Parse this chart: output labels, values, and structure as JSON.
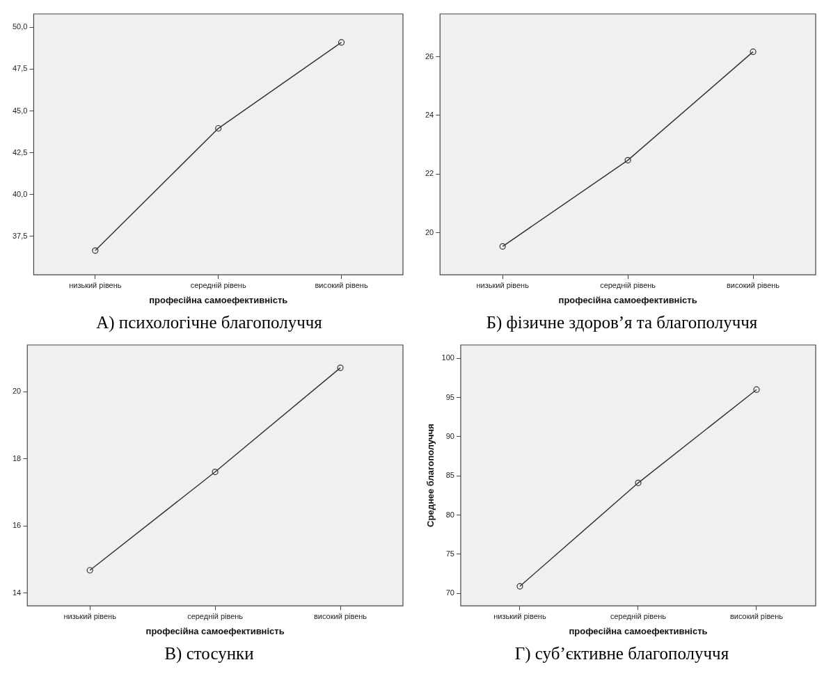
{
  "chart_data": [
    {
      "type": "line",
      "title": "А) психологічне благополуччя",
      "xlabel": "професійна самоефективність",
      "categories": [
        "низький рівень",
        "середній рівень",
        "високий рівень"
      ],
      "values": [
        36.65,
        43.96,
        49.1
      ],
      "color": "#333333",
      "marker": "circle",
      "line_style": "solid",
      "grid": false,
      "legend": false,
      "ylim": [
        35.2,
        50.8
      ],
      "yticks": [
        {
          "value": 37.5,
          "label": "37,5"
        },
        {
          "value": 40,
          "label": "40,0"
        },
        {
          "value": 42.5,
          "label": "42,5"
        },
        {
          "value": 45,
          "label": "45,0"
        },
        {
          "value": 47.5,
          "label": "47,5"
        },
        {
          "value": 50,
          "label": "50,0"
        }
      ]
    },
    {
      "type": "line",
      "title": "Б) фізичне здоров’я та благополуччя",
      "xlabel": "професійна самоефективність",
      "categories": [
        "низький рівень",
        "середній рівень",
        "високий рівень"
      ],
      "values": [
        19.53,
        22.47,
        26.17
      ],
      "color": "#333333",
      "marker": "circle",
      "line_style": "solid",
      "grid": false,
      "legend": false,
      "ylim": [
        18.56,
        27.46
      ],
      "yticks": [
        20,
        22,
        24,
        26
      ]
    },
    {
      "type": "line",
      "title": "В) стосунки",
      "xlabel": "професійна самоефективність",
      "categories": [
        "низький рівень",
        "середній рівень",
        "високий рівень"
      ],
      "values": [
        14.68,
        17.61,
        20.71
      ],
      "color": "#333333",
      "marker": "circle",
      "line_style": "solid",
      "grid": false,
      "legend": false,
      "ylim": [
        13.62,
        21.39
      ],
      "yticks": [
        14,
        16,
        18,
        20
      ]
    },
    {
      "type": "line",
      "title": "Г) суб’єктивне благополуччя",
      "xlabel": "професійна самоефективність",
      "ylabel": "Среднее благополуччя",
      "categories": [
        "низький рівень",
        "середній рівень",
        "високий рівень"
      ],
      "values": [
        70.9,
        84.1,
        96.0
      ],
      "color": "#333333",
      "marker": "circle",
      "line_style": "solid",
      "grid": false,
      "legend": false,
      "ylim": [
        68.4,
        101.7
      ],
      "yticks": [
        70,
        75,
        80,
        85,
        90,
        95,
        100
      ]
    }
  ]
}
